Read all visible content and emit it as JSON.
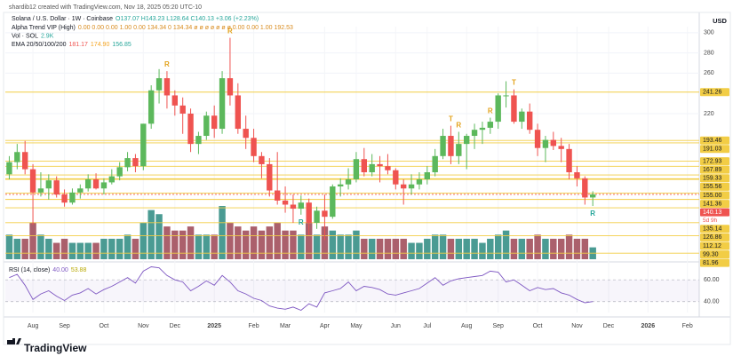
{
  "chart_data": {
    "type": "candlestick",
    "attribution": "shardib12 created with TradingView.com, Nov 18, 2025 05:20 UTC-10",
    "title": "Solana / U.S. Dollar · 1W · Coinbase",
    "ohlc": "O137.07 H143.23 L128.64 C140.13 +3.06 (+2.23%)",
    "indicators": [
      {
        "name": "Alpha Trend VIP (High)",
        "values": [
          {
            "text": "0.00 0.00 0.00 1.00 0.00 134.34 0 134.34 ø ø ø ø ø ø ø 0.00 0.00 1.00 192.53",
            "color": "#d98c1f"
          }
        ]
      },
      {
        "name": "Vol · SOL",
        "values": [
          {
            "text": "2.9K",
            "color": "#26a69a"
          }
        ]
      },
      {
        "name": "EMA 20/50/100/200",
        "values": [
          {
            "text": "181.17",
            "color": "#ef5350"
          },
          {
            "text": "174.90",
            "color": "#f5a623"
          },
          {
            "text": "156.85",
            "color": "#26a69a"
          }
        ]
      }
    ],
    "currency": "USD",
    "countdown": "5d 9h",
    "logo": "TradingView",
    "categories": [
      null,
      null,
      null,
      "Aug",
      null,
      null,
      null,
      "Sep",
      null,
      null,
      null,
      null,
      "Oct",
      null,
      null,
      null,
      null,
      "Nov",
      null,
      null,
      null,
      "Dec",
      null,
      null,
      null,
      null,
      "2025",
      null,
      null,
      null,
      null,
      "Feb",
      null,
      null,
      null,
      "Mar",
      null,
      null,
      null,
      null,
      "Apr",
      null,
      null,
      null,
      "May",
      null,
      null,
      null,
      null,
      "Jun",
      null,
      null,
      null,
      "Jul",
      null,
      null,
      null,
      null,
      "Aug",
      null,
      null,
      null,
      "Sep",
      null,
      null,
      null,
      null,
      "Oct",
      null,
      null,
      null,
      null,
      "Nov",
      null,
      null,
      null,
      "Dec",
      null,
      null,
      null,
      null,
      "2026",
      null,
      null,
      null,
      null,
      "Feb",
      null
    ],
    "open": [
      160,
      172,
      182,
      165,
      142,
      146,
      154,
      140,
      132,
      142,
      146,
      155,
      146,
      152,
      158,
      167,
      176,
      168,
      210,
      243,
      255,
      238,
      228,
      220,
      190,
      198,
      218,
      205,
      255,
      238,
      205,
      196,
      178,
      170,
      144,
      134,
      130,
      126,
      132,
      112,
      124,
      118,
      148,
      150,
      155,
      175,
      162,
      170,
      168,
      164,
      150,
      146,
      150,
      155,
      162,
      178,
      198,
      178,
      190,
      198,
      204,
      206,
      212,
      238,
      238,
      212,
      222,
      204,
      186,
      194,
      188,
      185,
      162,
      156,
      137.07,
      null,
      null,
      null,
      null,
      null,
      null,
      null,
      null,
      null,
      null,
      null,
      null,
      null
    ],
    "high": [
      178,
      190,
      193,
      170,
      162,
      160,
      158,
      145,
      146,
      150,
      160,
      161,
      156,
      165,
      172,
      182,
      180,
      210,
      248,
      264,
      262,
      243,
      236,
      225,
      202,
      222,
      228,
      262,
      295,
      250,
      218,
      205,
      182,
      176,
      182,
      148,
      140,
      139,
      136,
      128,
      140,
      150,
      156,
      166,
      182,
      186,
      180,
      178,
      180,
      166,
      155,
      160,
      162,
      168,
      185,
      205,
      208,
      202,
      200,
      210,
      212,
      216,
      240,
      252,
      244,
      225,
      230,
      210,
      198,
      202,
      196,
      190,
      168,
      158,
      143.23,
      null,
      null,
      null,
      null,
      null,
      null,
      null,
      null,
      null,
      null,
      null,
      null,
      null
    ],
    "low": [
      155,
      165,
      160,
      110,
      138,
      135,
      137,
      128,
      130,
      136,
      143,
      145,
      140,
      150,
      154,
      163,
      162,
      164,
      205,
      230,
      225,
      218,
      200,
      182,
      180,
      194,
      196,
      200,
      228,
      200,
      185,
      172,
      156,
      138,
      130,
      122,
      112,
      120,
      100,
      106,
      95,
      116,
      138,
      145,
      152,
      158,
      158,
      152,
      160,
      145,
      130,
      140,
      145,
      150,
      158,
      175,
      170,
      170,
      165,
      185,
      190,
      200,
      205,
      226,
      210,
      205,
      200,
      178,
      172,
      184,
      172,
      155,
      148,
      130,
      128.64,
      null,
      null,
      null,
      null,
      null,
      null,
      null,
      null,
      null,
      null,
      null,
      null,
      null
    ],
    "close": [
      172,
      182,
      165,
      142,
      146,
      154,
      140,
      132,
      142,
      146,
      155,
      146,
      152,
      158,
      167,
      176,
      168,
      210,
      243,
      255,
      238,
      228,
      220,
      190,
      198,
      218,
      205,
      255,
      238,
      205,
      196,
      178,
      170,
      144,
      134,
      130,
      126,
      132,
      112,
      124,
      118,
      148,
      150,
      155,
      175,
      162,
      170,
      168,
      164,
      150,
      146,
      150,
      155,
      162,
      178,
      198,
      178,
      190,
      198,
      204,
      206,
      212,
      238,
      238,
      212,
      222,
      204,
      186,
      194,
      188,
      185,
      162,
      156,
      137.07,
      140.13,
      null,
      null,
      null,
      null,
      null,
      null,
      null,
      null,
      null,
      null,
      null,
      null,
      null
    ],
    "volume": [
      6,
      5,
      5,
      9,
      6,
      5,
      4,
      5,
      4,
      4,
      4,
      4,
      5,
      5,
      5,
      6,
      5,
      9,
      12,
      11,
      8,
      7,
      7,
      8,
      6,
      6,
      6,
      13,
      9,
      8,
      7,
      8,
      7,
      8,
      9,
      7,
      7,
      6,
      9,
      6,
      8,
      7,
      6,
      6,
      7,
      5,
      5,
      5,
      5,
      5,
      5,
      4,
      4,
      5,
      6,
      6,
      5,
      5,
      5,
      5,
      4,
      5,
      6,
      7,
      5,
      5,
      5,
      6,
      5,
      5,
      5,
      6,
      5,
      5,
      2.9,
      null,
      null,
      null,
      null,
      null,
      null,
      null,
      null,
      null,
      null,
      null,
      null,
      null
    ],
    "up_color": "#5cb85c",
    "down_color": "#ef5350",
    "volume_up_color": "#2a8a80",
    "volume_down_color": "#9c4452",
    "ylim": [
      76,
      306
    ],
    "yticks": [
      220,
      260,
      280,
      300
    ],
    "grid": true,
    "levels": [
      {
        "value": 241.26,
        "label": "241.26",
        "color": "#f2cd45"
      },
      {
        "value": 193.46,
        "label": "193.46",
        "color": "#f2cd45"
      },
      {
        "value": 191.03,
        "label": "191.03",
        "color": "#f2cd45"
      },
      {
        "value": 172.93,
        "label": "172.93",
        "color": "#f2cd45"
      },
      {
        "value": 167.89,
        "label": "167.89",
        "color": "#f2cd45"
      },
      {
        "value": 159.33,
        "label": "159.33",
        "color": "#f2cd45"
      },
      {
        "value": 155.56,
        "label": "155.56",
        "color": "#f2cd45"
      },
      {
        "value": 155.0,
        "label": "155.00",
        "color": "#f2cd45"
      },
      {
        "value": 141.36,
        "label": "141.36",
        "color": "#f2cd45"
      },
      {
        "value": 140.13,
        "label": "140.13",
        "color": "#ef5350"
      },
      {
        "value": 135.14,
        "label": "135.14",
        "color": "#f2cd45"
      },
      {
        "value": 126.86,
        "label": "126.86",
        "color": "#f2cd45"
      },
      {
        "value": 112.12,
        "label": "112.12",
        "color": "#f2cd45"
      },
      {
        "value": 99.3,
        "label": "99.30",
        "color": "#f2cd45"
      },
      {
        "value": 81.96,
        "label": "81.96",
        "color": "#f2cd45"
      }
    ],
    "signals_above": [
      null,
      null,
      null,
      null,
      null,
      null,
      null,
      null,
      null,
      null,
      null,
      null,
      null,
      null,
      null,
      null,
      null,
      null,
      null,
      null,
      "R",
      null,
      null,
      null,
      null,
      null,
      null,
      null,
      "R",
      null,
      null,
      null,
      null,
      null,
      null,
      null,
      null,
      null,
      null,
      null,
      null,
      null,
      null,
      null,
      null,
      null,
      null,
      null,
      null,
      null,
      null,
      null,
      null,
      null,
      null,
      null,
      "T",
      "R",
      null,
      null,
      null,
      "R",
      null,
      null,
      "T",
      null,
      null,
      null,
      null,
      null,
      null,
      null,
      null,
      null,
      null,
      null,
      null,
      null,
      null,
      null,
      null,
      null,
      null,
      null,
      null,
      null,
      null,
      null
    ],
    "signals_below": [
      null,
      null,
      null,
      null,
      null,
      null,
      null,
      null,
      null,
      null,
      null,
      null,
      null,
      null,
      null,
      null,
      null,
      null,
      null,
      null,
      null,
      null,
      null,
      null,
      null,
      null,
      null,
      null,
      null,
      null,
      null,
      null,
      null,
      null,
      null,
      null,
      null,
      "R",
      null,
      null,
      null,
      null,
      null,
      null,
      null,
      null,
      null,
      null,
      null,
      null,
      null,
      null,
      null,
      null,
      null,
      null,
      null,
      null,
      null,
      null,
      null,
      null,
      null,
      null,
      null,
      null,
      null,
      null,
      null,
      null,
      null,
      null,
      null,
      null,
      "R",
      null,
      null,
      null,
      null,
      null,
      null,
      null,
      null,
      null,
      null,
      null,
      null,
      null
    ],
    "signal_color_above": "#e3a21a",
    "signal_color_below": "#26a69a",
    "rsi": {
      "name": "RSI (14, close)",
      "legend": [
        {
          "text": "40.00",
          "color": "#7e57c2"
        },
        {
          "text": "53.88",
          "color": "#b8a800"
        }
      ],
      "color": "#7e57c2",
      "values": [
        62,
        65,
        55,
        42,
        47,
        50,
        45,
        41,
        46,
        48,
        52,
        47,
        51,
        54,
        58,
        62,
        57,
        68,
        72,
        71,
        64,
        60,
        58,
        50,
        54,
        59,
        55,
        64,
        58,
        50,
        47,
        43,
        41,
        36,
        34,
        33,
        35,
        32,
        38,
        35,
        48,
        50,
        52,
        58,
        50,
        54,
        53,
        51,
        47,
        46,
        48,
        50,
        52,
        57,
        62,
        55,
        59,
        61,
        62,
        63,
        64,
        68,
        67,
        58,
        60,
        55,
        50,
        53,
        51,
        52,
        48,
        46,
        42,
        39,
        40,
        null,
        null,
        null,
        null,
        null,
        null,
        null,
        null,
        null,
        null,
        null,
        null,
        null
      ],
      "ylim": [
        30,
        74
      ],
      "yticks": [
        {
          "value": 60,
          "label": "60.00"
        },
        {
          "value": 40,
          "label": "40.00"
        }
      ]
    }
  }
}
